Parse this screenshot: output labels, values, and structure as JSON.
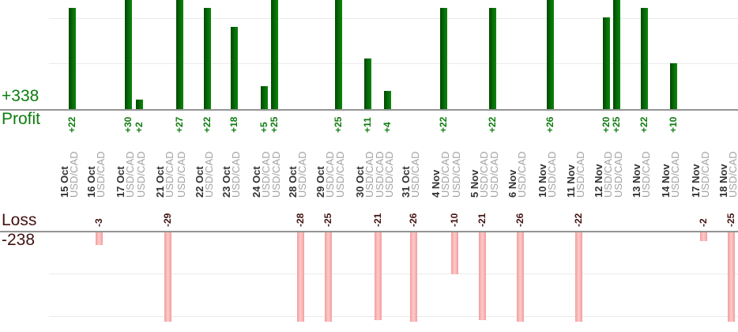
{
  "chart_data": {
    "type": "bar",
    "profit": {
      "label": "Profit",
      "total": "+338"
    },
    "loss": {
      "label": "Loss",
      "total": "-238"
    },
    "legend_position": "left-inline",
    "grid": "horizontal-light",
    "value_axis": {
      "grid_step_units": 10,
      "profit_visible_max": 23,
      "loss_visible_min": -21
    },
    "series": [
      {
        "date": "15 Oct",
        "instrument": "USD/CAD",
        "value": 22,
        "x": 91
      },
      {
        "date": "16 Oct",
        "instrument": "USD/CAD",
        "value": -3,
        "x": 125
      },
      {
        "date": "17 Oct",
        "instrument": "USD/CAD",
        "value": 30,
        "x": 162
      },
      {
        "date": "17 Oct",
        "instrument": "USD/CAD",
        "value": 2,
        "x": 176
      },
      {
        "date": "21 Oct",
        "instrument": "USD/CAD",
        "value": -29,
        "x": 212
      },
      {
        "date": "21 Oct",
        "instrument": "USD/CAD",
        "value": 27,
        "x": 227
      },
      {
        "date": "22 Oct",
        "instrument": "USD/CAD",
        "value": 22,
        "x": 262
      },
      {
        "date": "23 Oct",
        "instrument": "USD/CAD",
        "value": 18,
        "x": 296
      },
      {
        "date": "24 Oct",
        "instrument": "USD/CAD",
        "value": 5,
        "x": 334
      },
      {
        "date": "24 Oct",
        "instrument": "USD/CAD",
        "value": 25,
        "x": 347
      },
      {
        "date": "28 Oct",
        "instrument": "USD/CAD",
        "value": -28,
        "x": 380
      },
      {
        "date": "29 Oct",
        "instrument": "USD/CAD",
        "value": -25,
        "x": 415
      },
      {
        "date": "29 Oct",
        "instrument": "USD/CAD",
        "value": 25,
        "x": 428
      },
      {
        "date": "30 Oct",
        "instrument": "USD/CAD",
        "value": 11,
        "x": 465
      },
      {
        "date": "30 Oct",
        "instrument": "USD/CAD",
        "value": -21,
        "x": 478
      },
      {
        "date": "30 Oct",
        "instrument": "USD/CAD",
        "value": 4,
        "x": 490
      },
      {
        "date": "31 Oct",
        "instrument": "USD/CAD",
        "value": -26,
        "x": 523
      },
      {
        "date": "4 Nov",
        "instrument": "USD/CAD",
        "value": 22,
        "x": 561
      },
      {
        "date": "4 Nov",
        "instrument": "USD/CAD",
        "value": -10,
        "x": 575
      },
      {
        "date": "5 Nov",
        "instrument": "USD/CAD",
        "value": -21,
        "x": 610
      },
      {
        "date": "5 Nov",
        "instrument": "USD/CAD",
        "value": 22,
        "x": 623
      },
      {
        "date": "6 Nov",
        "instrument": "USD/CAD",
        "value": -26,
        "x": 658
      },
      {
        "date": "10 Nov",
        "instrument": "USD/CAD",
        "value": 26,
        "x": 696
      },
      {
        "date": "11 Nov",
        "instrument": "USD/CAD",
        "value": -22,
        "x": 732
      },
      {
        "date": "12 Nov",
        "instrument": "USD/CAD",
        "value": 20,
        "x": 767
      },
      {
        "date": "12 Nov",
        "instrument": "USD/CAD",
        "value": 25,
        "x": 780
      },
      {
        "date": "13 Nov",
        "instrument": "USD/CAD",
        "value": 22,
        "x": 815
      },
      {
        "date": "14 Nov",
        "instrument": "USD/CAD",
        "value": 10,
        "x": 852
      },
      {
        "date": "17 Nov",
        "instrument": "USD/CAD",
        "value": -2,
        "x": 890
      },
      {
        "date": "18 Nov",
        "instrument": "USD/CAD",
        "value": -25,
        "x": 925
      }
    ]
  },
  "colors": {
    "profit_bar": "#076607",
    "profit_bar_edge": "#014701",
    "profit_bar_light": "#0c870c",
    "loss_bar": "#ffc9c9",
    "loss_bar_edge": "#f09e9e",
    "profit_text": "#0e7c0e",
    "loss_text": "#421212",
    "date_text": "#333333",
    "instrument_text": "#a3a3a3",
    "axis_line": "#949494",
    "grid_line": "#ebebeb"
  }
}
